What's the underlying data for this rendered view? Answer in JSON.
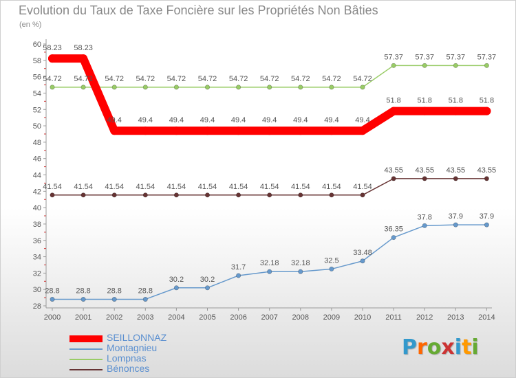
{
  "chart_data": {
    "type": "line",
    "title": "Evolution du Taux de Taxe Foncière sur les Propriétés Non Bâties",
    "unit_label": "(en %)",
    "xlabel": "",
    "ylabel": "(en %)",
    "x": [
      "2000",
      "2001",
      "2002",
      "2003",
      "2004",
      "2005",
      "2006",
      "2007",
      "2008",
      "2009",
      "2010",
      "2011",
      "2012",
      "2013",
      "2014"
    ],
    "ylim": [
      28,
      60
    ],
    "yticks": [
      28,
      30,
      32,
      34,
      36,
      38,
      40,
      42,
      44,
      46,
      48,
      50,
      52,
      54,
      56,
      58,
      60
    ],
    "grid": false,
    "legend_position": "bottom-left",
    "series": [
      {
        "name": "SEILLONNAZ",
        "color": "#ff0000",
        "values": [
          58.23,
          58.23,
          49.4,
          49.4,
          49.4,
          49.4,
          49.4,
          49.4,
          49.4,
          49.4,
          49.4,
          51.8,
          51.8,
          51.8,
          51.8
        ],
        "labels": [
          "58.23",
          "58.23",
          "49.4",
          "49.4",
          "49.4",
          "49.4",
          "49.4",
          "49.4",
          "49.4",
          "49.4",
          "49.4",
          "51.8",
          "51.8",
          "51.8",
          "51.8"
        ]
      },
      {
        "name": "Montagnieu",
        "color": "#6699cc",
        "values": [
          28.8,
          28.8,
          28.8,
          28.8,
          30.2,
          30.2,
          31.7,
          32.18,
          32.18,
          32.5,
          33.48,
          36.35,
          37.8,
          37.9,
          37.9
        ],
        "labels": [
          "28.8",
          "28.8",
          "28.8",
          "28.8",
          "30.2",
          "30.2",
          "31.7",
          "32.18",
          "32.18",
          "32.5",
          "33.48",
          "36.35",
          "37.8",
          "37.9",
          "37.9"
        ]
      },
      {
        "name": "Lompnas",
        "color": "#99cc66",
        "values": [
          54.72,
          54.72,
          54.72,
          54.72,
          54.72,
          54.72,
          54.72,
          54.72,
          54.72,
          54.72,
          54.72,
          57.37,
          57.37,
          57.37,
          57.37
        ],
        "labels": [
          "54.72",
          "54.72",
          "54.72",
          "54.72",
          "54.72",
          "54.72",
          "54.72",
          "54.72",
          "54.72",
          "54.72",
          "54.72",
          "57.37",
          "57.37",
          "57.37",
          "57.37"
        ]
      },
      {
        "name": "Bénonces",
        "color": "#663333",
        "values": [
          41.54,
          41.54,
          41.54,
          41.54,
          41.54,
          41.54,
          41.54,
          41.54,
          41.54,
          41.54,
          41.54,
          43.55,
          43.55,
          43.55,
          43.55
        ],
        "labels": [
          "41.54",
          "41.54",
          "41.54",
          "41.54",
          "41.54",
          "41.54",
          "41.54",
          "41.54",
          "41.54",
          "41.54",
          "41.54",
          "43.55",
          "43.55",
          "43.55",
          "43.55"
        ]
      }
    ]
  },
  "logo": {
    "letters": [
      "P",
      "r",
      "o",
      "x",
      "i",
      "t",
      "i"
    ],
    "colors": [
      "#3399cc",
      "#ff6600",
      "#66aa33",
      "#cc3333",
      "#3399cc",
      "#ff9900",
      "#66aa33"
    ]
  }
}
